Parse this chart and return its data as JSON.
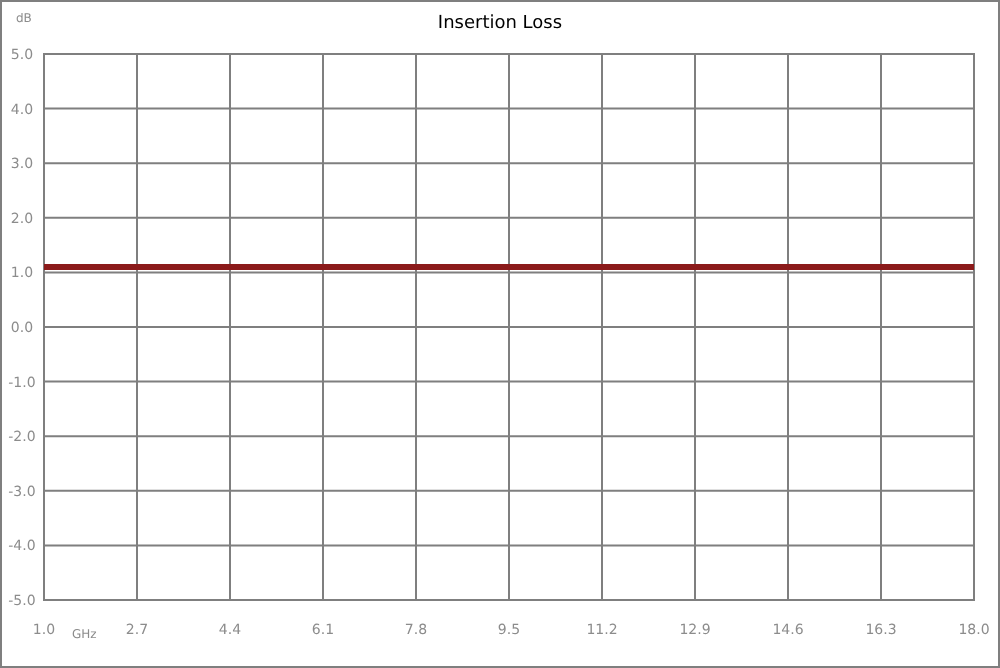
{
  "chart_data": {
    "type": "line",
    "title": "Insertion Loss",
    "xlabel": "GHz",
    "ylabel": "dB",
    "x": [
      1.0,
      18.0
    ],
    "series": [
      {
        "color": "#8b1a1a",
        "values": [
          1.1,
          1.1
        ]
      }
    ],
    "xlim": [
      1.0,
      18.0
    ],
    "xticks": [
      {
        "value": 1.0,
        "label": "1.0"
      },
      {
        "value": 2.7,
        "label": "2.7"
      },
      {
        "value": 4.4,
        "label": "4.4"
      },
      {
        "value": 6.1,
        "label": "6.1"
      },
      {
        "value": 7.8,
        "label": "7.8"
      },
      {
        "value": 9.5,
        "label": "9.5"
      },
      {
        "value": 11.2,
        "label": "11.2"
      },
      {
        "value": 12.9,
        "label": "12.9"
      },
      {
        "value": 14.6,
        "label": "14.6"
      },
      {
        "value": 16.3,
        "label": "16.3"
      },
      {
        "value": 18.0,
        "label": "18.0"
      }
    ],
    "ylim": [
      -5.0,
      5.0
    ],
    "yticks": [
      {
        "value": -5,
        "label": "-5.0"
      },
      {
        "value": -4,
        "label": "-4.0"
      },
      {
        "value": -3,
        "label": "-3.0"
      },
      {
        "value": -2,
        "label": "-2.0"
      },
      {
        "value": -1,
        "label": "-1.0"
      },
      {
        "value": 0,
        "label": "0.0"
      },
      {
        "value": 1,
        "label": "1.0"
      },
      {
        "value": 2,
        "label": "2.0"
      },
      {
        "value": 3,
        "label": "3.0"
      },
      {
        "value": 4,
        "label": "4.0"
      },
      {
        "value": 5,
        "label": "5.0"
      }
    ],
    "grid": true,
    "line_style": "solid"
  }
}
